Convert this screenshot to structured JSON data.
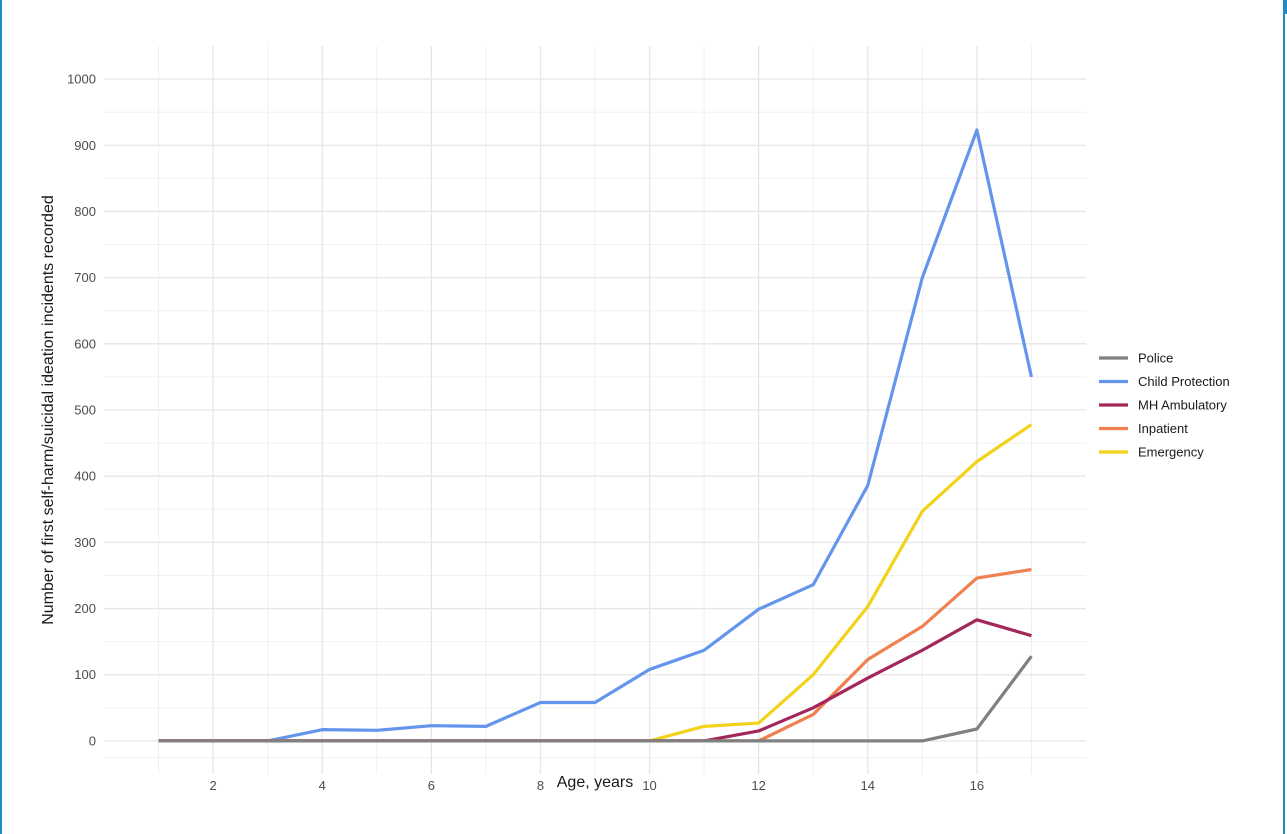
{
  "chart_data": {
    "type": "line",
    "title": "",
    "xlabel": "Age, years",
    "ylabel": "Number of first self-harm/suicidal ideation incidents recorded",
    "x": [
      1,
      2,
      3,
      4,
      5,
      6,
      7,
      8,
      9,
      10,
      11,
      12,
      13,
      14,
      15,
      16,
      17
    ],
    "xticks": [
      2,
      4,
      6,
      8,
      10,
      12,
      14,
      16
    ],
    "yticks": [
      0,
      100,
      200,
      300,
      400,
      500,
      600,
      700,
      800,
      900,
      1000
    ],
    "xlim": [
      0.0,
      18.0
    ],
    "ylim": [
      -50,
      1050
    ],
    "grid": true,
    "legend_position": "right",
    "series": [
      {
        "name": "Police",
        "color": "#808080",
        "values": [
          0,
          0,
          0,
          0,
          0,
          0,
          0,
          0,
          0,
          0,
          0,
          0,
          0,
          0,
          0,
          18,
          128
        ]
      },
      {
        "name": "Child Protection",
        "color": "#6495ed",
        "values": [
          0,
          0,
          0,
          17,
          16,
          23,
          22,
          58,
          58,
          108,
          137,
          199,
          236,
          386,
          700,
          923,
          550
        ]
      },
      {
        "name": "MH Ambulatory",
        "color": "#a2275a",
        "values": [
          0,
          0,
          0,
          0,
          0,
          0,
          0,
          0,
          0,
          0,
          0,
          15,
          50,
          95,
          137,
          183,
          159
        ]
      },
      {
        "name": "Inpatient",
        "color": "#f08050",
        "values": [
          0,
          0,
          0,
          0,
          0,
          0,
          0,
          0,
          0,
          0,
          0,
          0,
          40,
          123,
          173,
          246,
          259
        ]
      },
      {
        "name": "Emergency",
        "color": "#f2d21b",
        "values": [
          0,
          0,
          0,
          0,
          0,
          0,
          0,
          0,
          0,
          0,
          22,
          27,
          100,
          203,
          347,
          422,
          478
        ]
      }
    ]
  }
}
